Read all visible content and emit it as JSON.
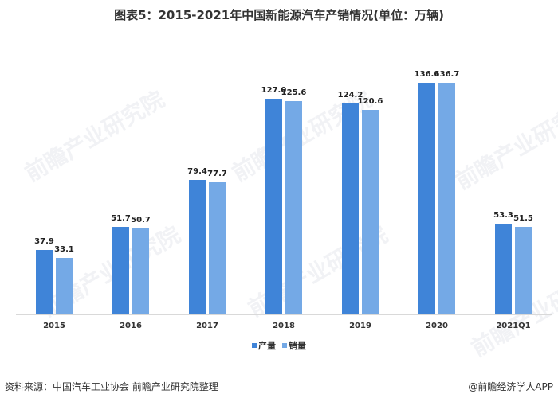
{
  "title": "图表5：2015-2021年中国新能源汽车产销情况(单位：万辆)",
  "legend": {
    "production_label": "产量",
    "sales_label": "销量",
    "production_color": "#3f84d8",
    "sales_color": "#74a9e6"
  },
  "footer": {
    "source": "资料来源：中国汽车工业协会 前瞻产业研究院整理",
    "credit": "@前瞻经济学人APP"
  },
  "watermark": "前瞻产业研究院",
  "chart_data": {
    "type": "bar",
    "title": "图表5：2015-2021年中国新能源汽车产销情况(单位：万辆)",
    "xlabel": "",
    "ylabel": "万辆",
    "categories": [
      "2015",
      "2016",
      "2017",
      "2018",
      "2019",
      "2020",
      "2021Q1"
    ],
    "series": [
      {
        "name": "产量",
        "color": "#3f84d8",
        "values": [
          37.9,
          51.7,
          79.4,
          127.0,
          124.2,
          136.6,
          53.3
        ],
        "labels": [
          "37.9",
          "51.7",
          "79.4",
          "127.0",
          "124.2",
          "136.6",
          "53.3"
        ]
      },
      {
        "name": "销量",
        "color": "#74a9e6",
        "values": [
          33.1,
          50.7,
          77.7,
          125.6,
          120.6,
          136.7,
          51.5
        ],
        "labels": [
          "33.1",
          "50.7",
          "77.7",
          "125.6",
          "120.6",
          "136.7",
          "51.5"
        ]
      }
    ],
    "ylim": [
      0,
      160
    ],
    "grid": false,
    "y_axis_visible": false,
    "data_labels": true,
    "legend_position": "bottom"
  }
}
